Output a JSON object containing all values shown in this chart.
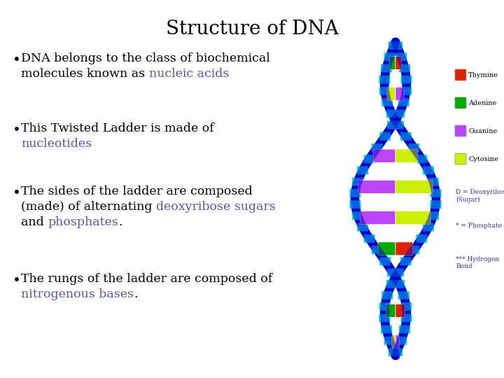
{
  "title": "Structure of DNA",
  "title_fontsize": 20,
  "title_font": "serif",
  "bg_color": "#ffffff",
  "text_color": "#000000",
  "highlight_color": "#5555bb",
  "bullet_lines": [
    [
      [
        "DNA belongs to the class of biochemical",
        "#000000"
      ],
      [
        "molecules known as ",
        "#000000"
      ],
      [
        "nucleic acids",
        "#5555bb"
      ]
    ],
    [
      [
        "This Twisted Ladder is made of",
        "#000000"
      ],
      [
        "nucleotides",
        "#5555bb"
      ]
    ],
    [
      [
        "The sides of the ladder are composed",
        "#000000"
      ],
      [
        "(made) of alternating ",
        "#000000"
      ],
      [
        "deoxyribose sugars",
        "#5555bb"
      ],
      [
        "and ",
        "#000000"
      ],
      [
        "phosphates",
        "#5555bb"
      ],
      [
        ".",
        "#000000"
      ]
    ],
    [
      [
        "The rungs of the ladder are composed of",
        "#000000"
      ],
      [
        "nitrogenous bases",
        "#5555bb"
      ],
      [
        ".",
        "#000000"
      ]
    ]
  ],
  "bullet_line_breaks": [
    [
      [
        0
      ],
      [
        1
      ]
    ],
    [
      [
        0
      ],
      [
        1
      ]
    ],
    [
      [
        0
      ],
      [
        1,
        2
      ],
      [
        3,
        4,
        5
      ]
    ],
    [
      [
        0
      ],
      [
        1,
        2
      ]
    ]
  ],
  "legend_items": [
    {
      "label": "Thymine",
      "color": "#dd2200"
    },
    {
      "label": "Adenine",
      "color": "#00aa00"
    },
    {
      "label": "Guanine",
      "color": "#bb44ff"
    },
    {
      "label": "Cytosine",
      "color": "#ccee00"
    }
  ],
  "legend_notes": [
    "D = Deoxyribose\n(Sugar)",
    "* = Phosphate",
    "*** Hydrogen\nBond"
  ],
  "strand_color": "#0000cc",
  "phosphate_color": "#00ccee",
  "base_pairs": [
    [
      "#00aa00",
      "#dd2200"
    ],
    [
      "#ccee00",
      "#bb44ff"
    ],
    [
      "#00aa00",
      "#dd2200"
    ],
    [
      "#bb44ff",
      "#ccee00"
    ],
    [
      "#bb44ff",
      "#ccee00"
    ],
    [
      "#bb44ff",
      "#ccee00"
    ],
    [
      "#00aa00",
      "#dd2200"
    ],
    [
      "#bb44ff",
      "#ccee00"
    ],
    [
      "#00aa00",
      "#dd2200"
    ],
    [
      "#ccee00",
      "#bb44ff"
    ]
  ],
  "font_size_body": 12.5
}
